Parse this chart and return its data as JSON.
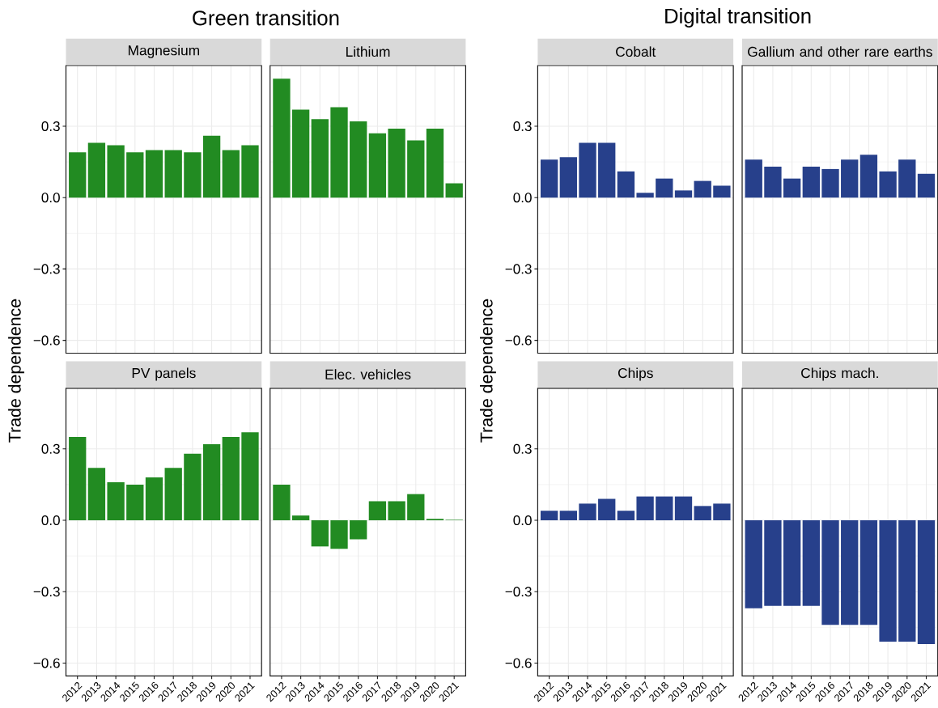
{
  "chart_data": [
    {
      "type": "bar",
      "title": "Magnesium",
      "ylabel": "Trade dependence",
      "annotations": [
        "Green transition"
      ],
      "categories": [
        "2012",
        "2013",
        "2014",
        "2015",
        "2016",
        "2017",
        "2018",
        "2019",
        "2020",
        "2021"
      ],
      "values": [
        0.19,
        0.23,
        0.22,
        0.19,
        0.2,
        0.2,
        0.19,
        0.26,
        0.2,
        0.22
      ],
      "color": "#228b22",
      "ylim": [
        -0.654,
        0.555
      ],
      "yticks": [
        {
          "value": -0.6,
          "label": "−0.6"
        },
        {
          "value": -0.3,
          "label": "−0.3"
        },
        {
          "value": 0,
          "label": "0.0"
        },
        {
          "value": 0.3,
          "label": "0.3"
        }
      ],
      "grid": true,
      "tick_labels": "y"
    },
    {
      "type": "bar",
      "title": "Lithium",
      "categories": [
        "2012",
        "2013",
        "2014",
        "2015",
        "2016",
        "2017",
        "2018",
        "2019",
        "2020",
        "2021"
      ],
      "values": [
        0.5,
        0.37,
        0.33,
        0.38,
        0.32,
        0.27,
        0.29,
        0.24,
        0.29,
        0.06
      ],
      "color": "#228b22",
      "ylim": [
        -0.654,
        0.555
      ],
      "yticks": [
        {
          "value": -0.6,
          "label": null
        },
        {
          "value": -0.3,
          "label": null
        },
        {
          "value": 0,
          "label": null
        },
        {
          "value": 0.3,
          "label": null
        }
      ],
      "grid": true,
      "tick_labels": false
    },
    {
      "type": "bar",
      "title": "Cobalt",
      "ylabel": "Trade dependence",
      "annotations": [
        "Digital transition"
      ],
      "categories": [
        "2012",
        "2013",
        "2014",
        "2015",
        "2016",
        "2017",
        "2018",
        "2019",
        "2020",
        "2021"
      ],
      "values": [
        0.16,
        0.17,
        0.23,
        0.23,
        0.11,
        0.02,
        0.08,
        0.03,
        0.07,
        0.05
      ],
      "color": "#27408b",
      "ylim": [
        -0.654,
        0.555
      ],
      "yticks": [
        {
          "value": -0.6,
          "label": "−0.6"
        },
        {
          "value": -0.3,
          "label": "−0.3"
        },
        {
          "value": 0,
          "label": "0.0"
        },
        {
          "value": 0.3,
          "label": "0.3"
        }
      ],
      "grid": true,
      "tick_labels": "y"
    },
    {
      "type": "bar",
      "title": "Gallium and other rare earths",
      "categories": [
        "2012",
        "2013",
        "2014",
        "2015",
        "2016",
        "2017",
        "2018",
        "2019",
        "2020",
        "2021"
      ],
      "values": [
        0.16,
        0.13,
        0.08,
        0.13,
        0.12,
        0.16,
        0.18,
        0.11,
        0.16,
        0.1
      ],
      "color": "#27408b",
      "ylim": [
        -0.654,
        0.555
      ],
      "yticks": [
        {
          "value": -0.6,
          "label": null
        },
        {
          "value": -0.3,
          "label": null
        },
        {
          "value": 0,
          "label": null
        },
        {
          "value": 0.3,
          "label": null
        }
      ],
      "grid": true,
      "tick_labels": false
    },
    {
      "type": "bar",
      "title": "PV panels",
      "categories": [
        "2012",
        "2013",
        "2014",
        "2015",
        "2016",
        "2017",
        "2018",
        "2019",
        "2020",
        "2021"
      ],
      "values": [
        0.35,
        0.22,
        0.16,
        0.15,
        0.18,
        0.22,
        0.28,
        0.32,
        0.35,
        0.37
      ],
      "color": "#228b22",
      "ylim": [
        -0.654,
        0.555
      ],
      "yticks": [
        {
          "value": -0.6,
          "label": "−0.6"
        },
        {
          "value": -0.3,
          "label": "−0.3"
        },
        {
          "value": 0,
          "label": "0.0"
        },
        {
          "value": 0.3,
          "label": "0.3"
        }
      ],
      "grid": true
    },
    {
      "type": "bar",
      "title": "Elec. vehicles",
      "categories": [
        "2012",
        "2013",
        "2014",
        "2015",
        "2016",
        "2017",
        "2018",
        "2019",
        "2020",
        "2021"
      ],
      "values": [
        0.15,
        0.02,
        -0.11,
        -0.12,
        -0.08,
        0.08,
        0.08,
        0.11,
        0.006,
        0.002
      ],
      "color": "#228b22",
      "ylim": [
        -0.654,
        0.555
      ],
      "yticks": [
        {
          "value": -0.6,
          "label": null
        },
        {
          "value": -0.3,
          "label": null
        },
        {
          "value": 0,
          "label": null
        },
        {
          "value": 0.3,
          "label": null
        }
      ],
      "grid": true,
      "tick_labels": "x"
    },
    {
      "type": "bar",
      "title": "Chips",
      "categories": [
        "2012",
        "2013",
        "2014",
        "2015",
        "2016",
        "2017",
        "2018",
        "2019",
        "2020",
        "2021"
      ],
      "values": [
        0.04,
        0.04,
        0.07,
        0.09,
        0.04,
        0.1,
        0.1,
        0.1,
        0.06,
        0.07
      ],
      "color": "#27408b",
      "ylim": [
        -0.654,
        0.555
      ],
      "yticks": [
        {
          "value": -0.6,
          "label": "−0.6"
        },
        {
          "value": -0.3,
          "label": "−0.3"
        },
        {
          "value": 0,
          "label": "0.0"
        },
        {
          "value": 0.3,
          "label": "0.3"
        }
      ],
      "grid": true
    },
    {
      "type": "bar",
      "title": "Chips mach.",
      "categories": [
        "2012",
        "2013",
        "2014",
        "2015",
        "2016",
        "2017",
        "2018",
        "2019",
        "2020",
        "2021"
      ],
      "values": [
        -0.37,
        -0.36,
        -0.36,
        -0.36,
        -0.44,
        -0.44,
        -0.44,
        -0.51,
        -0.51,
        -0.52
      ],
      "color": "#27408b",
      "ylim": [
        -0.654,
        0.555
      ],
      "yticks": [
        {
          "value": -0.6,
          "label": null
        },
        {
          "value": -0.3,
          "label": null
        },
        {
          "value": 0,
          "label": null
        },
        {
          "value": 0.3,
          "label": null
        }
      ],
      "grid": true,
      "tick_labels": "x"
    }
  ]
}
